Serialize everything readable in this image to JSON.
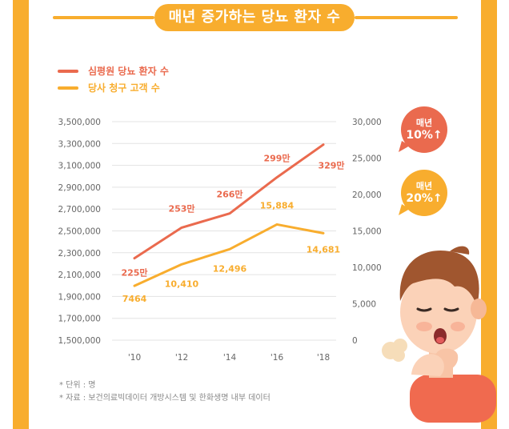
{
  "title": "매년 증가하는 당뇨 환자 수",
  "legend": {
    "patients": "심평원 당뇨 환자 수",
    "customers": "당사 청구 고객 수"
  },
  "bubbles": [
    {
      "line1": "매년",
      "line2": "10%↑",
      "color": "#ea6a4e"
    },
    {
      "line1": "매년",
      "line2": "20%↑",
      "color": "#f8ad2e"
    }
  ],
  "notes": {
    "unit": "* 단위 : 명",
    "source": "* 자료 : 보건의료빅데이터 개방시스템 및 한화생명 내부 데이터"
  },
  "chart_data": {
    "type": "line",
    "categories": [
      "'10",
      "'12",
      "'14",
      "'16",
      "'18"
    ],
    "left_axis": {
      "ylim": [
        1500000,
        3500000
      ],
      "ticks": [
        "3,500,000",
        "3,300,000",
        "3,100,000",
        "2,900,000",
        "2,700,000",
        "2,500,000",
        "2,300,000",
        "2,100,000",
        "1,900,000",
        "1,700,000",
        "1,500,000"
      ]
    },
    "right_axis": {
      "ylim": [
        0,
        30000
      ],
      "ticks": [
        "30,000",
        "25,000",
        "20,000",
        "15,000",
        "10,000",
        "5,000",
        "0"
      ]
    },
    "series": [
      {
        "name": "심평원 당뇨 환자 수",
        "axis": "left",
        "color": "#ea6a4e",
        "values": [
          2250000,
          2530000,
          2660000,
          2990000,
          3290000
        ],
        "labels": [
          "225만",
          "253만",
          "266만",
          "299만",
          "329만"
        ]
      },
      {
        "name": "당사 청구 고객 수",
        "axis": "right",
        "color": "#f8ad2e",
        "values": [
          7464,
          10410,
          12496,
          15884,
          14681
        ],
        "labels": [
          "7464",
          "10,410",
          "12,496",
          "15,884",
          "14,681"
        ]
      }
    ],
    "grid": true
  }
}
